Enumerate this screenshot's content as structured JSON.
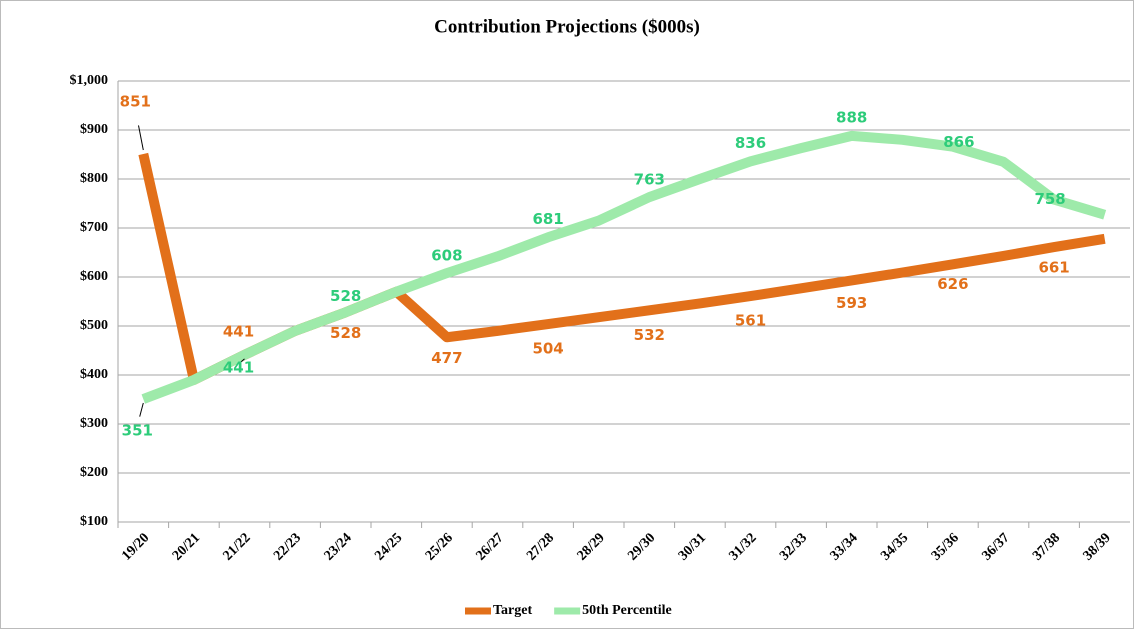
{
  "chart_data": {
    "type": "line",
    "title": "Contribution Projections ($000s)",
    "categories": [
      "19/20",
      "20/21",
      "21/22",
      "22/23",
      "23/24",
      "24/25",
      "25/26",
      "26/27",
      "27/28",
      "28/29",
      "29/30",
      "30/31",
      "31/32",
      "32/33",
      "33/34",
      "34/35",
      "35/36",
      "36/37",
      "37/38",
      "38/39"
    ],
    "series": [
      {
        "name": "Target",
        "color": "#e2701a",
        "values": [
          851,
          390,
          441,
          490,
          528,
          570,
          477,
          490,
          504,
          518,
          532,
          546,
          561,
          577,
          593,
          609,
          626,
          643,
          661,
          678
        ],
        "value_labels": [
          "851",
          null,
          "441",
          null,
          "528",
          null,
          "477",
          null,
          "504",
          null,
          "532",
          null,
          "561",
          null,
          "593",
          null,
          "626",
          null,
          "661",
          null
        ]
      },
      {
        "name": "50th Percentile",
        "color": "#9eeaaa",
        "values": [
          351,
          390,
          441,
          490,
          528,
          570,
          608,
          642,
          681,
          715,
          763,
          800,
          836,
          863,
          888,
          880,
          866,
          835,
          758,
          727
        ],
        "value_labels": [
          "351",
          null,
          "441",
          null,
          "528",
          null,
          "608",
          null,
          "681",
          null,
          "763",
          null,
          "836",
          null,
          "888",
          null,
          "866",
          null,
          "758",
          null
        ]
      }
    ],
    "ylim": [
      100,
      1000
    ],
    "yticks": [
      {
        "value": 100,
        "label": "$100"
      },
      {
        "value": 200,
        "label": "$200"
      },
      {
        "value": 300,
        "label": "$300"
      },
      {
        "value": 400,
        "label": "$400"
      },
      {
        "value": 500,
        "label": "$500"
      },
      {
        "value": 600,
        "label": "$600"
      },
      {
        "value": 700,
        "label": "$700"
      },
      {
        "value": 800,
        "label": "$800"
      },
      {
        "value": 900,
        "label": "$900"
      },
      {
        "value": 1000,
        "label": "$1,000"
      }
    ],
    "grid": true,
    "legend": "bottom"
  }
}
